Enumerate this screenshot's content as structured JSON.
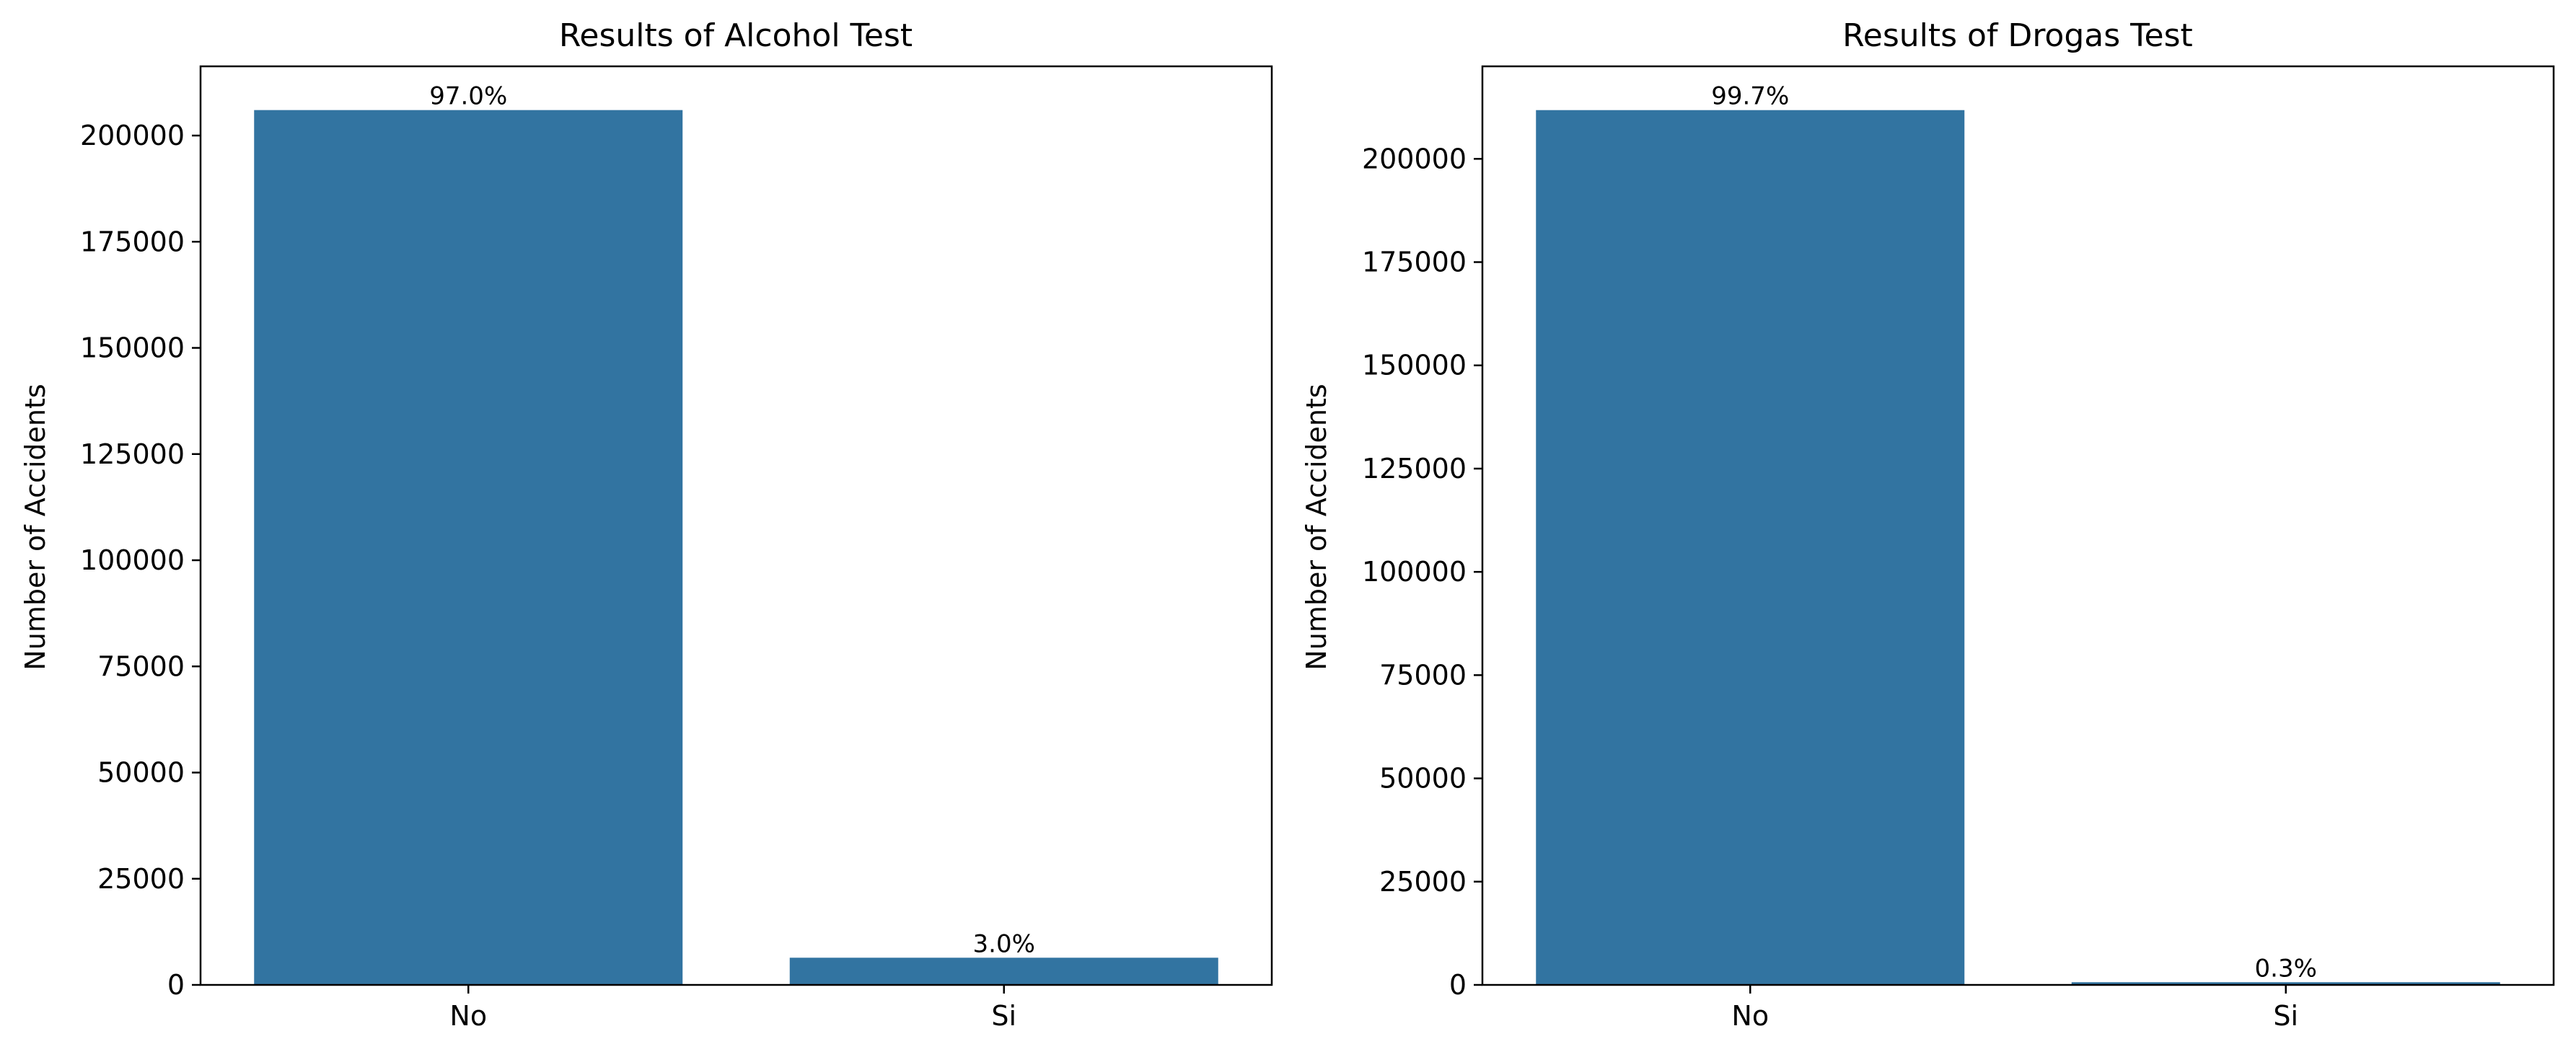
{
  "chart_data": [
    {
      "type": "bar",
      "title": "Results of Alcohol Test",
      "xlabel": "",
      "ylabel": "Number of Accidents",
      "categories": [
        "No",
        "Si"
      ],
      "values": [
        206000,
        6400
      ],
      "data_labels": [
        "97.0%",
        "3.0%"
      ],
      "ylim": [
        0,
        216300
      ],
      "yticks": [
        0,
        25000,
        50000,
        75000,
        100000,
        125000,
        150000,
        175000,
        200000
      ],
      "ytick_labels": [
        "0",
        "25000",
        "50000",
        "75000",
        "100000",
        "125000",
        "150000",
        "175000",
        "200000"
      ],
      "grid": false,
      "bar_color": "#3274a1"
    },
    {
      "type": "bar",
      "title": "Results of Drogas Test",
      "xlabel": "",
      "ylabel": "Number of Accidents",
      "categories": [
        "No",
        "Si"
      ],
      "values": [
        211800,
        650
      ],
      "data_labels": [
        "99.7%",
        "0.3%"
      ],
      "ylim": [
        0,
        222400
      ],
      "yticks": [
        0,
        25000,
        50000,
        75000,
        100000,
        125000,
        150000,
        175000,
        200000
      ],
      "ytick_labels": [
        "0",
        "25000",
        "50000",
        "75000",
        "100000",
        "125000",
        "150000",
        "175000",
        "200000"
      ],
      "grid": false,
      "bar_color": "#3274a1"
    }
  ]
}
